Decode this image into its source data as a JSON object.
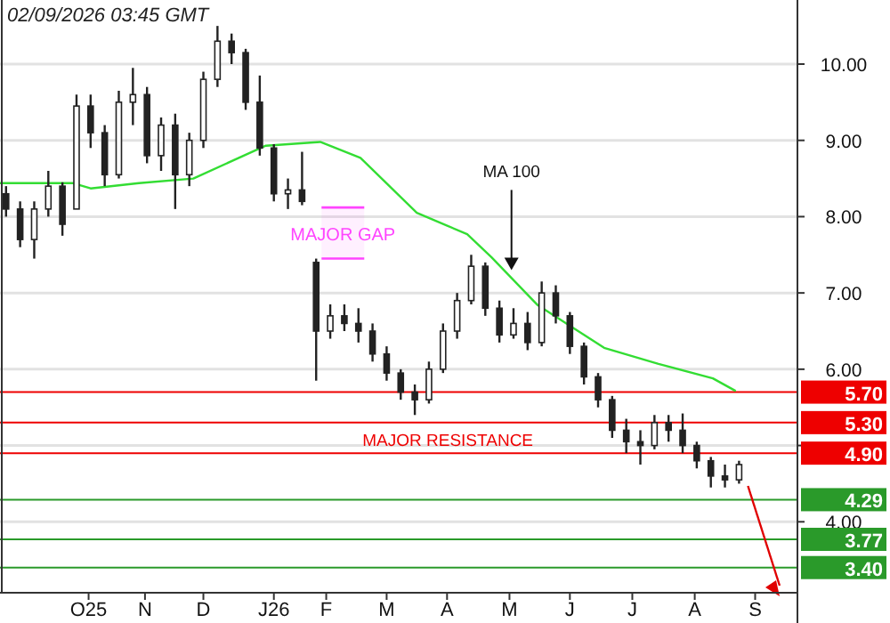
{
  "chart_data": {
    "type": "candlestick",
    "annotations": [
      "02/09/2026 03:45 GMT",
      {
        "text": "MA 100",
        "x": "2026-05-10",
        "y": 7.3
      },
      {
        "text": "MAJOR RESISTANCE",
        "x": "2026-02-25",
        "y": 5.3
      }
    ],
    "x": [
      "2025-09-01",
      "2025-09-08",
      "2025-09-15",
      "2025-09-22",
      "2025-09-29",
      "2025-10-06",
      "2025-10-13",
      "2025-10-20",
      "2025-10-27",
      "2025-11-03",
      "2025-11-10",
      "2025-11-17",
      "2025-11-24",
      "2025-12-01",
      "2025-12-08",
      "2025-12-15",
      "2025-12-22",
      "2025-12-29",
      "2026-01-05",
      "2026-01-12",
      "2026-01-19",
      "2026-01-26",
      "2026-02-02",
      "2026-02-09",
      "2026-02-16",
      "2026-02-23",
      "2026-03-02",
      "2026-03-09",
      "2026-03-16",
      "2026-03-23",
      "2026-03-30",
      "2026-04-06",
      "2026-04-13",
      "2026-04-20",
      "2026-04-27",
      "2026-05-04",
      "2026-05-11",
      "2026-05-18",
      "2026-05-25",
      "2026-06-01",
      "2026-06-08",
      "2026-06-15",
      "2026-06-22",
      "2026-06-29",
      "2026-07-06",
      "2026-07-13",
      "2026-07-20",
      "2026-07-27",
      "2026-08-03",
      "2026-08-10",
      "2026-08-17",
      "2026-08-24",
      "2026-08-31"
    ],
    "ohlc": [
      [
        8.3,
        8.4,
        8.0,
        8.1
      ],
      [
        8.1,
        8.2,
        7.6,
        7.7
      ],
      [
        7.7,
        8.2,
        7.45,
        8.1
      ],
      [
        8.1,
        8.6,
        8.0,
        8.4
      ],
      [
        8.4,
        8.45,
        7.75,
        7.9
      ],
      [
        8.1,
        9.6,
        8.1,
        9.45
      ],
      [
        9.45,
        9.6,
        8.9,
        9.1
      ],
      [
        9.1,
        9.2,
        8.4,
        8.55
      ],
      [
        8.55,
        9.65,
        8.5,
        9.5
      ],
      [
        9.5,
        9.95,
        9.2,
        9.6
      ],
      [
        9.6,
        9.7,
        8.7,
        8.8
      ],
      [
        8.8,
        9.3,
        8.6,
        9.2
      ],
      [
        9.2,
        9.35,
        8.1,
        8.55
      ],
      [
        8.55,
        9.1,
        8.4,
        9.0
      ],
      [
        9.0,
        9.9,
        8.9,
        9.8
      ],
      [
        9.8,
        10.5,
        9.7,
        10.3
      ],
      [
        10.3,
        10.4,
        10.0,
        10.15
      ],
      [
        10.15,
        10.2,
        9.4,
        9.5
      ],
      [
        9.5,
        9.85,
        8.8,
        8.9
      ],
      [
        8.9,
        8.95,
        8.2,
        8.3
      ],
      [
        8.3,
        8.5,
        8.1,
        8.35
      ],
      [
        8.35,
        8.85,
        8.15,
        8.2
      ],
      [
        7.4,
        7.45,
        5.85,
        6.5
      ],
      [
        6.5,
        6.85,
        6.4,
        6.7
      ],
      [
        6.7,
        6.85,
        6.5,
        6.6
      ],
      [
        6.6,
        6.8,
        6.35,
        6.5
      ],
      [
        6.5,
        6.6,
        6.1,
        6.2
      ],
      [
        6.2,
        6.3,
        5.85,
        5.95
      ],
      [
        5.95,
        6.0,
        5.6,
        5.7
      ],
      [
        5.7,
        5.8,
        5.4,
        5.6
      ],
      [
        5.6,
        6.1,
        5.55,
        6.0
      ],
      [
        6.0,
        6.6,
        5.95,
        6.5
      ],
      [
        6.5,
        7.0,
        6.4,
        6.9
      ],
      [
        6.9,
        7.5,
        6.85,
        7.35
      ],
      [
        7.35,
        7.4,
        6.7,
        6.8
      ],
      [
        6.8,
        6.9,
        6.35,
        6.45
      ],
      [
        6.45,
        6.8,
        6.4,
        6.6
      ],
      [
        6.6,
        6.75,
        6.25,
        6.35
      ],
      [
        6.35,
        7.15,
        6.3,
        7.0
      ],
      [
        7.0,
        7.1,
        6.6,
        6.7
      ],
      [
        6.7,
        6.75,
        6.2,
        6.3
      ],
      [
        6.3,
        6.35,
        5.8,
        5.9
      ],
      [
        5.9,
        5.95,
        5.5,
        5.6
      ],
      [
        5.6,
        5.65,
        5.1,
        5.2
      ],
      [
        5.2,
        5.35,
        4.9,
        5.05
      ],
      [
        5.05,
        5.2,
        4.75,
        5.0
      ],
      [
        5.0,
        5.4,
        4.95,
        5.3
      ],
      [
        5.3,
        5.4,
        5.05,
        5.2
      ],
      [
        5.2,
        5.42,
        4.9,
        5.0
      ],
      [
        5.0,
        5.05,
        4.7,
        4.8
      ],
      [
        4.8,
        4.85,
        4.45,
        4.6
      ],
      [
        4.6,
        4.75,
        4.45,
        4.55
      ],
      [
        4.55,
        4.8,
        4.5,
        4.75
      ]
    ],
    "series": [
      {
        "type": "line",
        "color": "#33dd33",
        "x": [
          "2025-08-29",
          "2025-10-04",
          "2025-10-13",
          "2025-11-06",
          "2025-12-03",
          "2026-01-08",
          "2026-02-04",
          "2026-02-24",
          "2026-03-24",
          "2026-04-18",
          "2026-04-30",
          "2026-05-23",
          "2026-06-25",
          "2026-07-22",
          "2026-08-18",
          "2026-08-29"
        ],
        "values": [
          8.44,
          8.44,
          8.37,
          8.44,
          8.5,
          8.93,
          8.98,
          8.77,
          8.05,
          7.77,
          7.47,
          6.84,
          6.28,
          6.07,
          5.88,
          5.72
        ]
      }
    ],
    "xlim": [
      "2025-08-29",
      "2026-09-29"
    ],
    "xticks": [
      {
        "value": "2025-10-12",
        "label": "O25"
      },
      {
        "value": "2025-11-09",
        "label": "N"
      },
      {
        "value": "2025-12-08",
        "label": "D"
      },
      {
        "value": "2026-01-12",
        "label": "J26"
      },
      {
        "value": "2026-02-07",
        "label": "F"
      },
      {
        "value": "2026-03-09",
        "label": "M"
      },
      {
        "value": "2026-04-08",
        "label": "A"
      },
      {
        "value": "2026-05-09",
        "label": "M"
      },
      {
        "value": "2026-06-08",
        "label": "J"
      },
      {
        "value": "2026-07-09",
        "label": "J"
      },
      {
        "value": "2026-08-09",
        "label": "A"
      },
      {
        "value": "2026-09-08",
        "label": "S"
      }
    ],
    "ylim": [
      3.07,
      10.84
    ],
    "yticks": [
      {
        "value": 4,
        "label": "4.00"
      },
      {
        "value": 5,
        "label": null
      },
      {
        "value": 6,
        "label": "6.00"
      },
      {
        "value": 7,
        "label": "7.00"
      },
      {
        "value": 8,
        "label": "8.00"
      },
      {
        "value": 9,
        "label": "9.00"
      },
      {
        "value": 10,
        "label": "10.00"
      }
    ],
    "grid": "y",
    "ref_lines": [
      {
        "axis": "y",
        "value": 5.7,
        "label": "5.70",
        "color": "#ee0000"
      },
      {
        "axis": "y",
        "value": 5.3,
        "label": "5.30",
        "color": "#ee0000"
      },
      {
        "axis": "y",
        "value": 4.9,
        "label": "4.90",
        "color": "#ee0000"
      },
      {
        "axis": "y",
        "value": 4.29,
        "label": "4.29",
        "color": "#2a9a2a"
      },
      {
        "axis": "y",
        "value": 3.77,
        "label": "3.77",
        "color": "#2a9a2a"
      },
      {
        "axis": "y",
        "value": 3.4,
        "label": "3.40",
        "color": "#2a9a2a"
      }
    ],
    "bands": [
      {
        "axis": "y",
        "from": 7.45,
        "to": 8.12,
        "label": "MAJOR GAP",
        "color": "#ff44ff"
      }
    ]
  }
}
